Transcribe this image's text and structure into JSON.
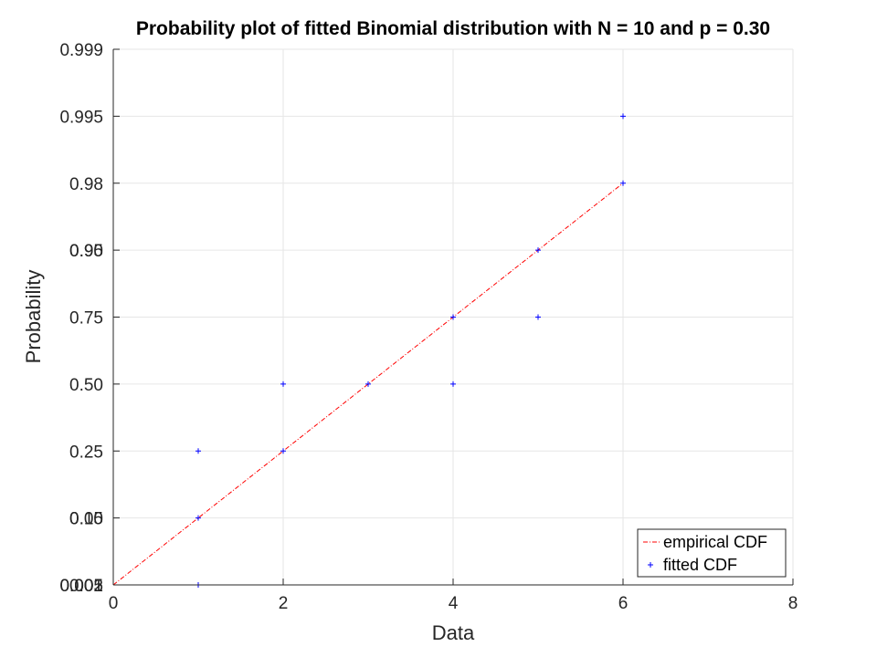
{
  "chart_data": {
    "type": "scatter",
    "title": "Probability plot of fitted Binomial distribution with N = 10 and p = 0.30",
    "xlabel": "Data",
    "ylabel": "Probability",
    "xlim": [
      0,
      8
    ],
    "x_ticks": [
      0,
      2,
      4,
      6,
      8
    ],
    "x_tick_labels": [
      "0",
      "2",
      "4",
      "6",
      "8"
    ],
    "y_ticks": [
      {
        "label": "0.001",
        "level": 0
      },
      {
        "label": "0.005",
        "level": 0
      },
      {
        "label": "0.02",
        "level": 0
      },
      {
        "label": "0.05",
        "level": 1
      },
      {
        "label": "0.10",
        "level": 1
      },
      {
        "label": "0.25",
        "level": 2
      },
      {
        "label": "0.50",
        "level": 3
      },
      {
        "label": "0.75",
        "level": 4
      },
      {
        "label": "0.90",
        "level": 5
      },
      {
        "label": "0.95",
        "level": 5
      },
      {
        "label": "0.98",
        "level": 6
      },
      {
        "label": "0.995",
        "level": 7
      },
      {
        "label": "0.999",
        "level": 8
      }
    ],
    "y_scale": "probability",
    "grid": true,
    "legend_position": "bottom-right",
    "series": [
      {
        "name": "empirical CDF",
        "style": "dash-dot line",
        "color": "#ff0000",
        "x": [
          0,
          1,
          2,
          3,
          4,
          5,
          6
        ],
        "y": [
          0.001,
          0.1,
          0.25,
          0.5,
          0.75,
          0.9,
          0.98
        ]
      },
      {
        "name": "fitted CDF",
        "style": "plus markers",
        "color": "#0000ff",
        "x": [
          1,
          1,
          1,
          2,
          2,
          3,
          4,
          4,
          5,
          5,
          6,
          6
        ],
        "y": [
          0.001,
          0.1,
          0.25,
          0.25,
          0.5,
          0.5,
          0.5,
          0.75,
          0.75,
          0.9,
          0.98,
          0.995
        ]
      }
    ]
  }
}
